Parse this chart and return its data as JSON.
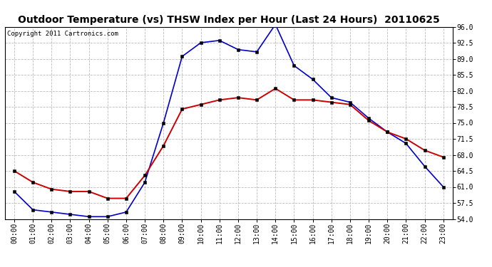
{
  "title": "Outdoor Temperature (vs) THSW Index per Hour (Last 24 Hours)  20110625",
  "copyright": "Copyright 2011 Cartronics.com",
  "x_labels": [
    "00:00",
    "01:00",
    "02:00",
    "03:00",
    "04:00",
    "05:00",
    "06:00",
    "07:00",
    "08:00",
    "09:00",
    "10:00",
    "11:00",
    "12:00",
    "13:00",
    "14:00",
    "15:00",
    "16:00",
    "17:00",
    "18:00",
    "19:00",
    "20:00",
    "21:00",
    "22:00",
    "23:00"
  ],
  "temp_red": [
    64.5,
    62.0,
    60.5,
    60.0,
    60.0,
    58.5,
    58.5,
    63.5,
    70.0,
    78.0,
    79.0,
    80.0,
    80.5,
    80.0,
    82.5,
    80.0,
    80.0,
    79.5,
    79.0,
    75.5,
    73.0,
    71.5,
    69.0,
    67.5
  ],
  "thsw_blue": [
    60.0,
    56.0,
    55.5,
    55.0,
    54.5,
    54.5,
    55.5,
    62.0,
    75.0,
    89.5,
    92.5,
    93.0,
    91.0,
    90.5,
    96.5,
    87.5,
    84.5,
    80.5,
    79.5,
    76.0,
    73.0,
    70.5,
    65.5,
    61.0
  ],
  "ylim": [
    54.0,
    96.0
  ],
  "yticks": [
    54.0,
    57.5,
    61.0,
    64.5,
    68.0,
    71.5,
    75.0,
    78.5,
    82.0,
    85.5,
    89.0,
    92.5,
    96.0
  ],
  "background_color": "#ffffff",
  "grid_color": "#bbbbbb",
  "line_color_red": "#cc0000",
  "line_color_blue": "#0000cc",
  "title_fontsize": 10,
  "copyright_fontsize": 6.5,
  "tick_fontsize": 7
}
